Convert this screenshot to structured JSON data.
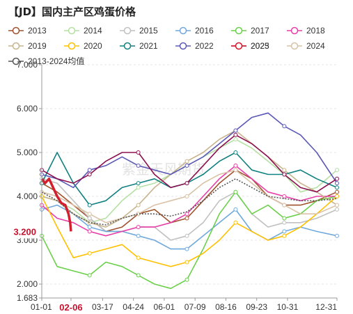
{
  "title": "【JD】国内主产区鸡蛋价格",
  "watermark": "紫金天风期货",
  "highlight": {
    "y_label": "3.200",
    "x_label": "02-06"
  },
  "chart_data": {
    "type": "line",
    "title": "【JD】国内主产区鸡蛋价格",
    "xlabel": "",
    "ylabel": "",
    "x_tick_labels": [
      "01-01",
      "02-06",
      "03-17",
      "04-24",
      "06-01",
      "07-09",
      "08-16",
      "09-23",
      "10-31",
      "12-31"
    ],
    "x_tick_days": [
      1,
      37,
      76,
      114,
      152,
      190,
      228,
      266,
      304,
      365
    ],
    "y_tick_labels": [
      "1.683",
      "2.000",
      "3.000",
      "4.000",
      "5.000",
      "6.000",
      "7.000"
    ],
    "y_tick_values": [
      1.683,
      2.0,
      3.0,
      4.0,
      5.0,
      6.0,
      7.0
    ],
    "xlim": [
      1,
      365
    ],
    "ylim": [
      1.683,
      7.0
    ],
    "legend_position": "top",
    "grid": "horizontal",
    "series": [
      {
        "name": "2013",
        "color": "#a0522d",
        "dashed": false,
        "x": [
          1,
          20,
          40,
          60,
          80,
          100,
          120,
          140,
          160,
          180,
          200,
          220,
          240,
          260,
          280,
          300,
          320,
          340,
          365
        ],
        "y": [
          4.3,
          4.1,
          3.8,
          3.5,
          3.2,
          3.3,
          3.6,
          3.7,
          3.4,
          3.5,
          3.9,
          4.3,
          4.6,
          4.4,
          4.0,
          3.8,
          3.8,
          3.9,
          4.1
        ]
      },
      {
        "name": "2014",
        "color": "#b5e0a3",
        "dashed": false,
        "x": [
          1,
          20,
          40,
          60,
          80,
          100,
          120,
          140,
          160,
          180,
          200,
          220,
          240,
          260,
          280,
          300,
          320,
          340,
          365
        ],
        "y": [
          4.0,
          3.9,
          3.7,
          3.4,
          3.5,
          3.9,
          4.2,
          4.3,
          4.5,
          4.7,
          4.9,
          5.1,
          5.3,
          5.1,
          4.8,
          4.5,
          4.1,
          4.2,
          4.6
        ]
      },
      {
        "name": "2015",
        "color": "#c0c0c0",
        "dashed": false,
        "x": [
          1,
          20,
          40,
          60,
          80,
          100,
          120,
          140,
          160,
          180,
          200,
          220,
          240,
          260,
          280,
          300,
          320,
          340,
          365
        ],
        "y": [
          4.4,
          4.3,
          3.9,
          3.5,
          3.2,
          3.2,
          3.3,
          3.3,
          3.0,
          3.1,
          3.4,
          3.9,
          4.1,
          3.6,
          3.3,
          3.4,
          3.4,
          3.5,
          3.7
        ]
      },
      {
        "name": "2016",
        "color": "#6fa8dc",
        "dashed": false,
        "x": [
          1,
          20,
          40,
          60,
          80,
          100,
          120,
          140,
          160,
          180,
          200,
          220,
          240,
          260,
          280,
          300,
          320,
          340,
          365
        ],
        "y": [
          3.7,
          3.8,
          3.6,
          3.3,
          3.2,
          3.2,
          3.1,
          3.0,
          2.8,
          2.8,
          3.1,
          3.4,
          3.7,
          3.2,
          3.0,
          3.2,
          3.3,
          3.2,
          3.1
        ]
      },
      {
        "name": "2017",
        "color": "#6ad04a",
        "dashed": false,
        "x": [
          1,
          20,
          40,
          60,
          80,
          100,
          120,
          140,
          160,
          180,
          200,
          220,
          240,
          260,
          280,
          300,
          320,
          340,
          365
        ],
        "y": [
          3.1,
          2.4,
          2.3,
          2.2,
          2.5,
          2.4,
          2.2,
          2.0,
          1.9,
          2.1,
          2.8,
          3.6,
          4.1,
          3.6,
          3.8,
          3.5,
          3.6,
          3.9,
          4.0
        ]
      },
      {
        "name": "2018",
        "color": "#e83ea8",
        "dashed": false,
        "x": [
          1,
          20,
          40,
          60,
          80,
          100,
          120,
          140,
          160,
          180,
          200,
          220,
          240,
          260,
          280,
          300,
          320,
          340,
          365
        ],
        "y": [
          3.8,
          3.5,
          3.4,
          3.2,
          3.1,
          3.2,
          3.3,
          3.3,
          3.4,
          3.6,
          4.0,
          4.4,
          4.7,
          4.4,
          4.1,
          4.0,
          3.9,
          4.0,
          4.0
        ]
      },
      {
        "name": "2019",
        "color": "#c8b48c",
        "dashed": false,
        "x": [
          1,
          20,
          40,
          60,
          80,
          100,
          120,
          140,
          160,
          180,
          200,
          220,
          240,
          260,
          280,
          300,
          320,
          340,
          365
        ],
        "y": [
          4.0,
          3.9,
          3.6,
          3.4,
          3.3,
          3.5,
          3.8,
          4.2,
          4.5,
          4.8,
          5.0,
          5.3,
          5.5,
          5.2,
          4.9,
          4.6,
          4.3,
          4.1,
          3.8
        ]
      },
      {
        "name": "2020",
        "color": "#ffc000",
        "dashed": false,
        "x": [
          1,
          20,
          40,
          60,
          80,
          100,
          120,
          140,
          160,
          180,
          200,
          220,
          240,
          260,
          280,
          300,
          320,
          340,
          365
        ],
        "y": [
          4.0,
          3.3,
          2.6,
          2.7,
          2.8,
          2.9,
          2.6,
          2.5,
          2.4,
          2.5,
          2.7,
          3.0,
          3.4,
          3.2,
          3.0,
          3.1,
          3.3,
          3.6,
          4.0
        ]
      },
      {
        "name": "2021",
        "color": "#118080",
        "dashed": false,
        "x": [
          1,
          20,
          40,
          60,
          80,
          100,
          120,
          140,
          160,
          180,
          200,
          220,
          240,
          260,
          280,
          300,
          320,
          340,
          365
        ],
        "y": [
          4.3,
          5.0,
          4.3,
          3.8,
          3.9,
          4.2,
          4.3,
          4.4,
          4.2,
          4.3,
          4.5,
          4.8,
          5.0,
          4.6,
          4.5,
          4.5,
          4.6,
          4.4,
          4.2
        ]
      },
      {
        "name": "2022",
        "color": "#5b58b6",
        "dashed": false,
        "x": [
          1,
          20,
          40,
          60,
          80,
          100,
          120,
          140,
          160,
          180,
          200,
          220,
          240,
          260,
          280,
          300,
          320,
          340,
          365
        ],
        "y": [
          4.5,
          4.4,
          4.2,
          4.6,
          4.7,
          4.9,
          4.7,
          4.6,
          4.5,
          4.7,
          4.9,
          5.2,
          5.5,
          5.8,
          5.9,
          5.6,
          5.4,
          5.0,
          4.3
        ]
      },
      {
        "name": "2023",
        "color": "#8b1050",
        "dashed": false,
        "x": [
          1,
          20,
          40,
          60,
          80,
          100,
          120,
          140,
          160,
          180,
          200,
          220,
          240,
          260,
          280,
          300,
          320,
          340,
          365
        ],
        "y": [
          4.6,
          4.4,
          4.3,
          4.5,
          4.8,
          5.0,
          5.0,
          4.5,
          4.2,
          4.3,
          4.7,
          5.1,
          5.4,
          5.2,
          4.9,
          4.5,
          4.2,
          4.1,
          4.4
        ]
      },
      {
        "name": "2024",
        "color": "#d9c2a6",
        "dashed": false,
        "x": [
          1,
          20,
          40,
          60,
          80,
          100,
          120,
          140,
          160,
          180,
          200,
          220,
          240,
          260,
          280,
          300,
          320,
          340,
          365
        ],
        "y": [
          4.1,
          4.0,
          3.8,
          3.6,
          3.4,
          3.5,
          3.6,
          3.8,
          3.9,
          4.0,
          4.3,
          4.5,
          4.6,
          4.3,
          4.0,
          3.8,
          3.6,
          3.6,
          3.8
        ]
      },
      {
        "name": "2025",
        "color": "#d4202e",
        "dashed": false,
        "thick": true,
        "x": [
          1,
          5,
          10,
          15,
          20,
          25,
          30,
          34,
          36,
          37
        ],
        "y": [
          4.4,
          4.3,
          4.4,
          4.2,
          4.0,
          3.85,
          3.8,
          3.6,
          3.4,
          3.2
        ]
      },
      {
        "name": "2013-2024均值",
        "color": "#555555",
        "dashed": true,
        "x": [
          1,
          20,
          40,
          60,
          80,
          100,
          120,
          140,
          160,
          180,
          200,
          220,
          240,
          260,
          280,
          300,
          320,
          340,
          365
        ],
        "y": [
          4.1,
          3.9,
          3.6,
          3.4,
          3.35,
          3.5,
          3.6,
          3.6,
          3.55,
          3.65,
          3.9,
          4.2,
          4.4,
          4.2,
          4.0,
          3.95,
          3.9,
          3.9,
          3.95
        ]
      }
    ]
  }
}
